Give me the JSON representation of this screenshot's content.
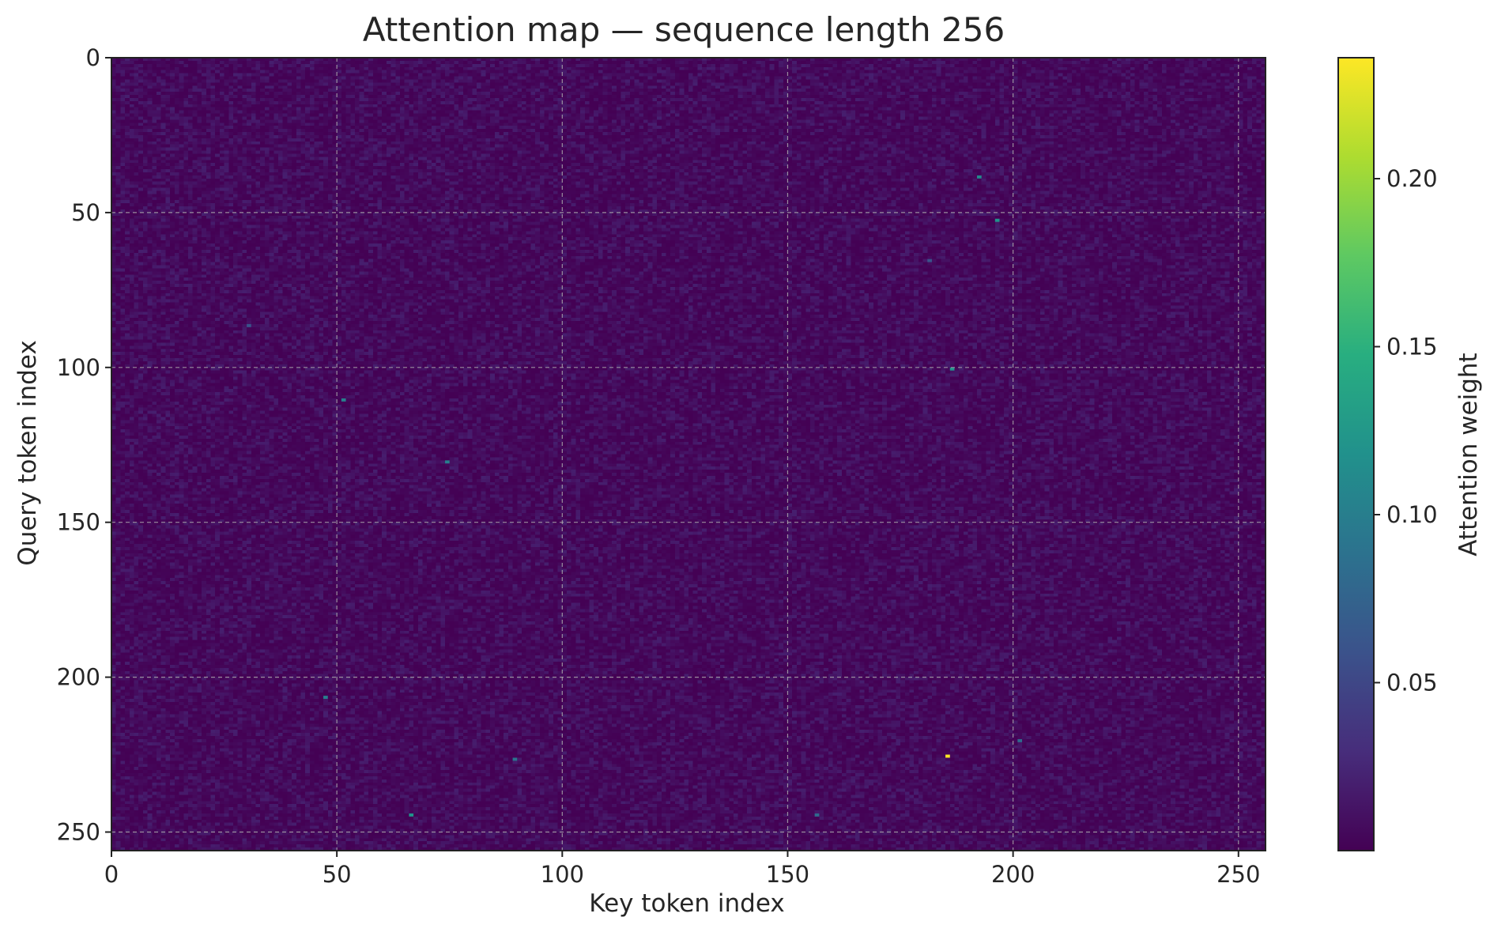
{
  "chart_data": {
    "type": "heatmap",
    "title": "Attention map — sequence length 256",
    "xlabel": "Key token index",
    "ylabel": "Query token index",
    "colorbar_label": "Attention weight",
    "colormap": "viridis",
    "grid": true,
    "x_ticks": [
      0,
      50,
      100,
      150,
      200,
      250
    ],
    "y_ticks": [
      0,
      50,
      100,
      150,
      200,
      250
    ],
    "x_range": [
      0,
      256
    ],
    "y_range": [
      0,
      256
    ],
    "y_axis_inverted": true,
    "colorbar_range": [
      0.0,
      0.236
    ],
    "colorbar_ticks": [
      "0.05",
      "0.10",
      "0.15",
      "0.20"
    ],
    "background_weight_range": [
      0.0,
      0.02
    ],
    "notable_cells": [
      {
        "query": 38,
        "key": 192,
        "value": 0.11
      },
      {
        "query": 52,
        "key": 196,
        "value": 0.12
      },
      {
        "query": 65,
        "key": 181,
        "value": 0.06
      },
      {
        "query": 86,
        "key": 30,
        "value": 0.06
      },
      {
        "query": 100,
        "key": 186,
        "value": 0.12
      },
      {
        "query": 110,
        "key": 51,
        "value": 0.1
      },
      {
        "query": 130,
        "key": 74,
        "value": 0.1
      },
      {
        "query": 206,
        "key": 47,
        "value": 0.1
      },
      {
        "query": 220,
        "key": 201,
        "value": 0.08
      },
      {
        "query": 225,
        "key": 185,
        "value": 0.236
      },
      {
        "query": 226,
        "key": 89,
        "value": 0.09
      },
      {
        "query": 244,
        "key": 66,
        "value": 0.12
      },
      {
        "query": 244,
        "key": 156,
        "value": 0.08
      }
    ]
  }
}
